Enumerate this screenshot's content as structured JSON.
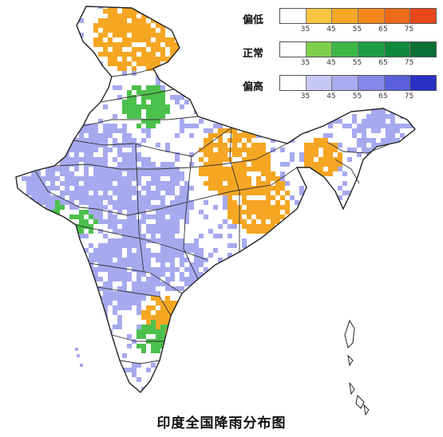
{
  "caption": "印度全国降雨分布图",
  "legend": [
    {
      "label": "偏低",
      "colors": [
        "#ffffff",
        "#f9c542",
        "#f5a623",
        "#f3871c",
        "#ef6a1a",
        "#e8481c"
      ],
      "ticks": [
        "35",
        "45",
        "55",
        "65",
        "75"
      ]
    },
    {
      "label": "正常",
      "colors": [
        "#ffffff",
        "#7ed04b",
        "#3cb846",
        "#1e9e44",
        "#0f8a3c",
        "#0b7034"
      ],
      "ticks": [
        "35",
        "45",
        "55",
        "65",
        "75"
      ]
    },
    {
      "label": "偏高",
      "colors": [
        "#ffffff",
        "#c7c8f4",
        "#a9abef",
        "#8588e8",
        "#5a5fdc",
        "#2a30c4"
      ],
      "ticks": [
        "35",
        "45",
        "55",
        "65",
        "75"
      ]
    }
  ],
  "colors": {
    "below": "#f5a623",
    "normal": "#4cc04c",
    "above": "#a7a9ef",
    "border": "#222222"
  }
}
